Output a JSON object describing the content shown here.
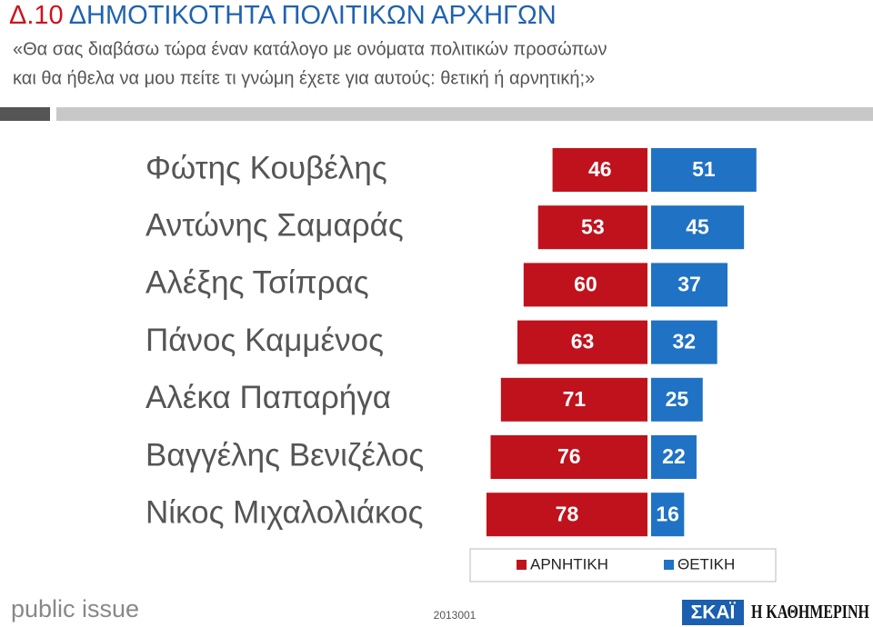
{
  "chart_data": {
    "type": "bar",
    "orientation": "diverging",
    "title_code": "Δ.10",
    "title": "ΔΗΜΟΤΙΚΟΤΗΤΑ ΠΟΛΙΤΙΚΩΝ ΑΡΧΗΓΩΝ",
    "subtitle": [
      "«Θα σας διαβάσω τώρα έναν κατάλογο με ονόματα πολιτικών προσώπων",
      "και θα ήθελα να μου πείτε τι γνώμη έχετε για αυτούς: θετική ή αρνητική;»"
    ],
    "categories": [
      "Φώτης Κουβέλης",
      "Αντώνης Σαμαράς",
      "Αλέξης Τσίπρας",
      "Πάνος Καμμένος",
      "Αλέκα Παπαρήγα",
      "Βαγγέλης Βενιζέλος",
      "Νίκος Μιχαλολιάκος"
    ],
    "series": [
      {
        "name": "ΑΡΝΗΤΙΚΗ",
        "color": "#c0121c",
        "side": "left",
        "values": [
          46,
          53,
          60,
          63,
          71,
          76,
          78
        ]
      },
      {
        "name": "ΘΕΤΙΚΗ",
        "color": "#1f72c4",
        "side": "right",
        "values": [
          51,
          45,
          37,
          32,
          25,
          22,
          16
        ]
      }
    ]
  },
  "footer": {
    "brand": "public issue",
    "code": "2013001",
    "logo_1": "ΣΚΑΪ",
    "logo_2": "Η ΚΑΘΗΜΕΡΙΝΗ"
  }
}
